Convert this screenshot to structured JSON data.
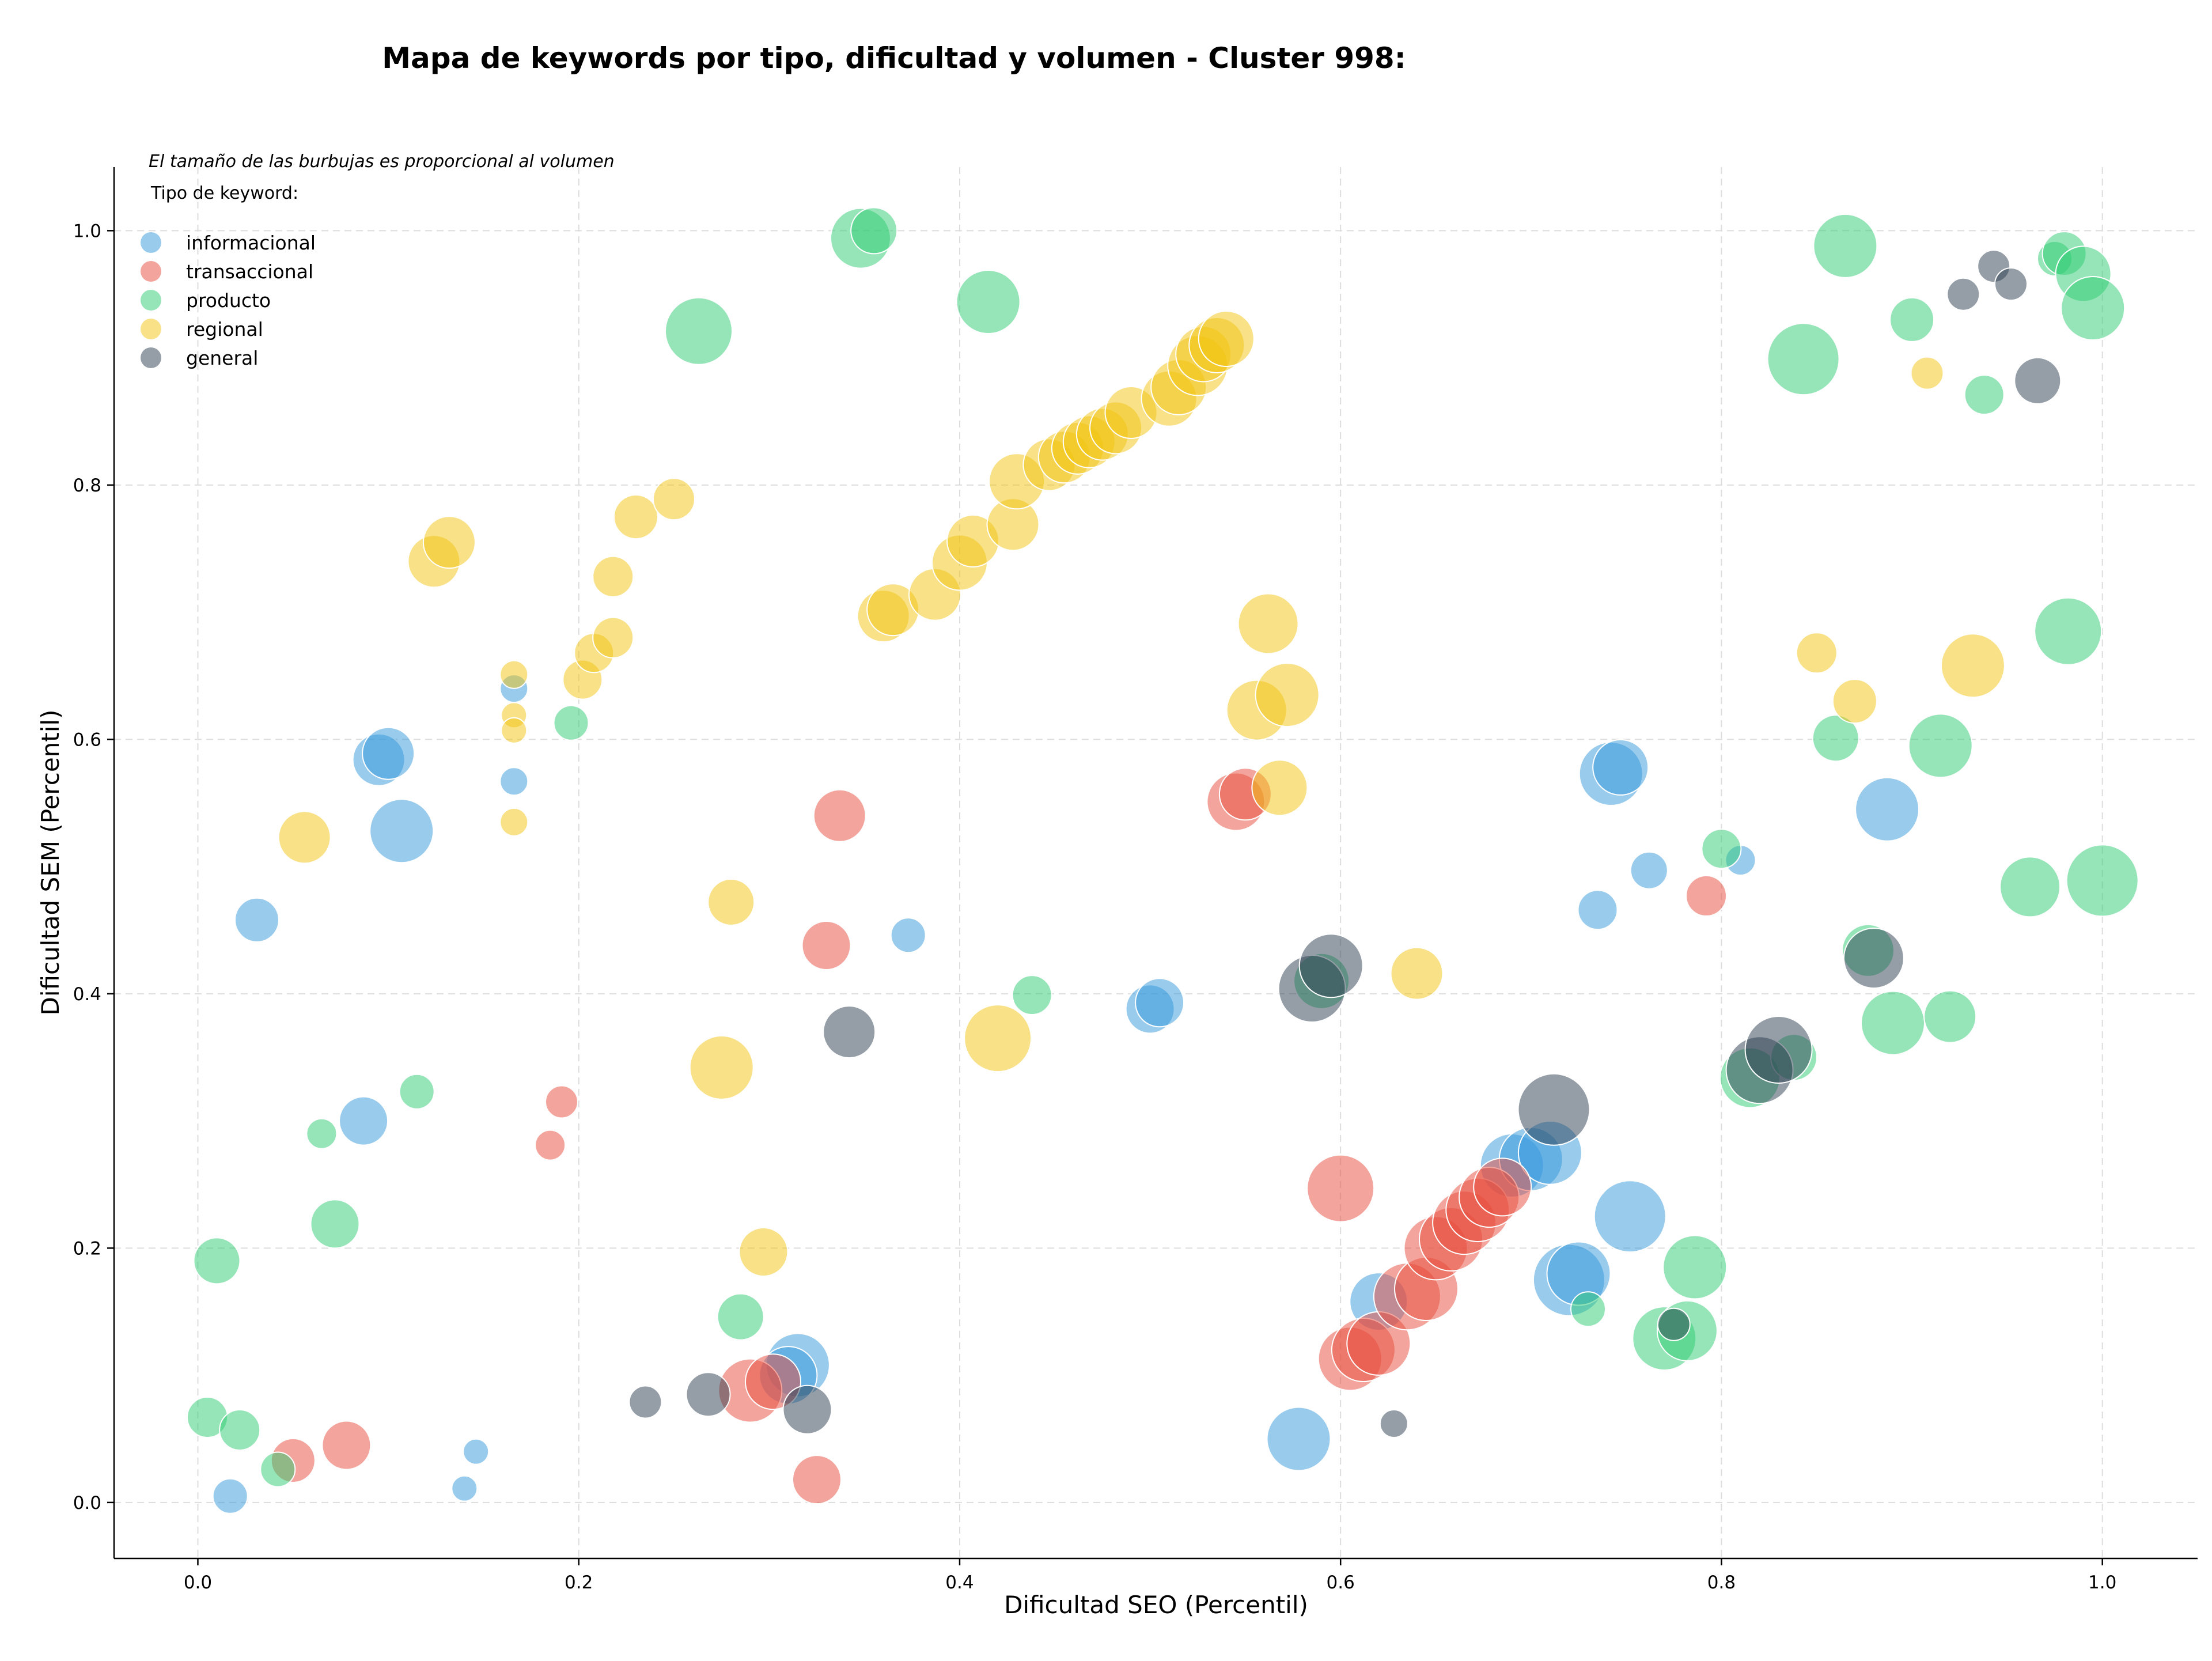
{
  "chart_data": {
    "type": "scatter",
    "title": "Mapa de keywords por tipo, dificultad y volumen - Cluster 998:",
    "xlabel": "Dificultad SEO (Percentil)",
    "ylabel": "Dificultad SEM (Percentil)",
    "xlim": [
      -0.044,
      1.05
    ],
    "ylim": [
      -0.044,
      1.05
    ],
    "xticks": [
      "0.0",
      "0.2",
      "0.4",
      "0.6",
      "0.8",
      "1.0"
    ],
    "yticks": [
      "0.0",
      "0.2",
      "0.4",
      "0.6",
      "0.8",
      "1.0"
    ],
    "grid": true,
    "legend": {
      "placement": "top-left",
      "note": "El tamaño de las burbujas es proporcional al volumen",
      "title": "Tipo de keyword:"
    },
    "series": [
      {
        "name": "informacional",
        "color": "#3498db",
        "points": [
          {
            "x": 0.017,
            "y": 0.005,
            "r": 30
          },
          {
            "x": 0.14,
            "y": 0.011,
            "r": 22
          },
          {
            "x": 0.146,
            "y": 0.04,
            "r": 22
          },
          {
            "x": 0.031,
            "y": 0.458,
            "r": 38
          },
          {
            "x": 0.087,
            "y": 0.3,
            "r": 42
          },
          {
            "x": 0.095,
            "y": 0.584,
            "r": 45
          },
          {
            "x": 0.1,
            "y": 0.589,
            "r": 45
          },
          {
            "x": 0.107,
            "y": 0.528,
            "r": 55
          },
          {
            "x": 0.166,
            "y": 0.64,
            "r": 24
          },
          {
            "x": 0.166,
            "y": 0.567,
            "r": 24
          },
          {
            "x": 0.315,
            "y": 0.108,
            "r": 55
          },
          {
            "x": 0.31,
            "y": 0.1,
            "r": 50
          },
          {
            "x": 0.373,
            "y": 0.446,
            "r": 30
          },
          {
            "x": 0.5,
            "y": 0.388,
            "r": 42
          },
          {
            "x": 0.505,
            "y": 0.393,
            "r": 42
          },
          {
            "x": 0.578,
            "y": 0.05,
            "r": 55
          },
          {
            "x": 0.62,
            "y": 0.158,
            "r": 50
          },
          {
            "x": 0.69,
            "y": 0.265,
            "r": 55
          },
          {
            "x": 0.7,
            "y": 0.27,
            "r": 55
          },
          {
            "x": 0.71,
            "y": 0.275,
            "r": 55
          },
          {
            "x": 0.72,
            "y": 0.175,
            "r": 62
          },
          {
            "x": 0.725,
            "y": 0.18,
            "r": 55
          },
          {
            "x": 0.735,
            "y": 0.466,
            "r": 34
          },
          {
            "x": 0.742,
            "y": 0.573,
            "r": 55
          },
          {
            "x": 0.747,
            "y": 0.578,
            "r": 48
          },
          {
            "x": 0.752,
            "y": 0.225,
            "r": 62
          },
          {
            "x": 0.762,
            "y": 0.497,
            "r": 32
          },
          {
            "x": 0.81,
            "y": 0.505,
            "r": 26
          },
          {
            "x": 0.887,
            "y": 0.545,
            "r": 55
          }
        ]
      },
      {
        "name": "transaccional",
        "color": "#e74c3c",
        "points": [
          {
            "x": 0.05,
            "y": 0.033,
            "r": 38
          },
          {
            "x": 0.078,
            "y": 0.045,
            "r": 42
          },
          {
            "x": 0.185,
            "y": 0.281,
            "r": 26
          },
          {
            "x": 0.191,
            "y": 0.315,
            "r": 28
          },
          {
            "x": 0.29,
            "y": 0.088,
            "r": 55
          },
          {
            "x": 0.302,
            "y": 0.095,
            "r": 48
          },
          {
            "x": 0.325,
            "y": 0.018,
            "r": 42
          },
          {
            "x": 0.33,
            "y": 0.438,
            "r": 42
          },
          {
            "x": 0.337,
            "y": 0.54,
            "r": 45
          },
          {
            "x": 0.545,
            "y": 0.551,
            "r": 50
          },
          {
            "x": 0.55,
            "y": 0.557,
            "r": 45
          },
          {
            "x": 0.6,
            "y": 0.247,
            "r": 58
          },
          {
            "x": 0.605,
            "y": 0.113,
            "r": 55
          },
          {
            "x": 0.612,
            "y": 0.12,
            "r": 55
          },
          {
            "x": 0.62,
            "y": 0.125,
            "r": 55
          },
          {
            "x": 0.635,
            "y": 0.162,
            "r": 58
          },
          {
            "x": 0.645,
            "y": 0.168,
            "r": 55
          },
          {
            "x": 0.65,
            "y": 0.2,
            "r": 55
          },
          {
            "x": 0.658,
            "y": 0.207,
            "r": 55
          },
          {
            "x": 0.665,
            "y": 0.22,
            "r": 55
          },
          {
            "x": 0.672,
            "y": 0.23,
            "r": 55
          },
          {
            "x": 0.678,
            "y": 0.24,
            "r": 52
          },
          {
            "x": 0.685,
            "y": 0.248,
            "r": 50
          },
          {
            "x": 0.792,
            "y": 0.477,
            "r": 35
          }
        ]
      },
      {
        "name": "producto",
        "color": "#2ecc71",
        "points": [
          {
            "x": 0.005,
            "y": 0.067,
            "r": 35
          },
          {
            "x": 0.01,
            "y": 0.19,
            "r": 40
          },
          {
            "x": 0.022,
            "y": 0.057,
            "r": 35
          },
          {
            "x": 0.042,
            "y": 0.026,
            "r": 30
          },
          {
            "x": 0.065,
            "y": 0.29,
            "r": 26
          },
          {
            "x": 0.072,
            "y": 0.219,
            "r": 42
          },
          {
            "x": 0.115,
            "y": 0.323,
            "r": 30
          },
          {
            "x": 0.196,
            "y": 0.613,
            "r": 30
          },
          {
            "x": 0.263,
            "y": 0.921,
            "r": 58
          },
          {
            "x": 0.285,
            "y": 0.146,
            "r": 40
          },
          {
            "x": 0.348,
            "y": 0.994,
            "r": 52
          },
          {
            "x": 0.355,
            "y": 1.0,
            "r": 40
          },
          {
            "x": 0.415,
            "y": 0.944,
            "r": 55
          },
          {
            "x": 0.438,
            "y": 0.399,
            "r": 34
          },
          {
            "x": 0.59,
            "y": 0.41,
            "r": 48
          },
          {
            "x": 0.73,
            "y": 0.152,
            "r": 30
          },
          {
            "x": 0.77,
            "y": 0.129,
            "r": 55
          },
          {
            "x": 0.782,
            "y": 0.135,
            "r": 52
          },
          {
            "x": 0.786,
            "y": 0.185,
            "r": 55
          },
          {
            "x": 0.8,
            "y": 0.514,
            "r": 34
          },
          {
            "x": 0.815,
            "y": 0.334,
            "r": 52
          },
          {
            "x": 0.838,
            "y": 0.35,
            "r": 40
          },
          {
            "x": 0.843,
            "y": 0.899,
            "r": 62
          },
          {
            "x": 0.86,
            "y": 0.601,
            "r": 40
          },
          {
            "x": 0.865,
            "y": 0.988,
            "r": 55
          },
          {
            "x": 0.877,
            "y": 0.434,
            "r": 45
          },
          {
            "x": 0.89,
            "y": 0.377,
            "r": 55
          },
          {
            "x": 0.9,
            "y": 0.93,
            "r": 38
          },
          {
            "x": 0.915,
            "y": 0.595,
            "r": 55
          },
          {
            "x": 0.92,
            "y": 0.382,
            "r": 45
          },
          {
            "x": 0.938,
            "y": 0.871,
            "r": 34
          },
          {
            "x": 0.962,
            "y": 0.484,
            "r": 52
          },
          {
            "x": 0.975,
            "y": 0.978,
            "r": 30
          },
          {
            "x": 0.98,
            "y": 0.982,
            "r": 38
          },
          {
            "x": 0.982,
            "y": 0.685,
            "r": 58
          },
          {
            "x": 0.99,
            "y": 0.966,
            "r": 48
          },
          {
            "x": 0.995,
            "y": 0.939,
            "r": 55
          },
          {
            "x": 1.0,
            "y": 0.489,
            "r": 62
          }
        ]
      },
      {
        "name": "regional",
        "color": "#f1c40f",
        "points": [
          {
            "x": 0.056,
            "y": 0.523,
            "r": 45
          },
          {
            "x": 0.124,
            "y": 0.74,
            "r": 45
          },
          {
            "x": 0.132,
            "y": 0.755,
            "r": 45
          },
          {
            "x": 0.166,
            "y": 0.651,
            "r": 24
          },
          {
            "x": 0.166,
            "y": 0.619,
            "r": 22
          },
          {
            "x": 0.166,
            "y": 0.607,
            "r": 22
          },
          {
            "x": 0.166,
            "y": 0.535,
            "r": 24
          },
          {
            "x": 0.202,
            "y": 0.647,
            "r": 34
          },
          {
            "x": 0.208,
            "y": 0.668,
            "r": 34
          },
          {
            "x": 0.218,
            "y": 0.728,
            "r": 35
          },
          {
            "x": 0.218,
            "y": 0.68,
            "r": 35
          },
          {
            "x": 0.23,
            "y": 0.775,
            "r": 38
          },
          {
            "x": 0.25,
            "y": 0.789,
            "r": 36
          },
          {
            "x": 0.275,
            "y": 0.342,
            "r": 55
          },
          {
            "x": 0.28,
            "y": 0.472,
            "r": 40
          },
          {
            "x": 0.297,
            "y": 0.197,
            "r": 42
          },
          {
            "x": 0.36,
            "y": 0.697,
            "r": 45
          },
          {
            "x": 0.365,
            "y": 0.702,
            "r": 45
          },
          {
            "x": 0.387,
            "y": 0.714,
            "r": 45
          },
          {
            "x": 0.4,
            "y": 0.739,
            "r": 48
          },
          {
            "x": 0.407,
            "y": 0.756,
            "r": 45
          },
          {
            "x": 0.42,
            "y": 0.365,
            "r": 58
          },
          {
            "x": 0.428,
            "y": 0.769,
            "r": 45
          },
          {
            "x": 0.43,
            "y": 0.803,
            "r": 48
          },
          {
            "x": 0.447,
            "y": 0.816,
            "r": 45
          },
          {
            "x": 0.455,
            "y": 0.822,
            "r": 45
          },
          {
            "x": 0.462,
            "y": 0.829,
            "r": 45
          },
          {
            "x": 0.468,
            "y": 0.834,
            "r": 45
          },
          {
            "x": 0.475,
            "y": 0.84,
            "r": 45
          },
          {
            "x": 0.482,
            "y": 0.845,
            "r": 45
          },
          {
            "x": 0.49,
            "y": 0.857,
            "r": 45
          },
          {
            "x": 0.51,
            "y": 0.868,
            "r": 48
          },
          {
            "x": 0.515,
            "y": 0.877,
            "r": 48
          },
          {
            "x": 0.525,
            "y": 0.894,
            "r": 52
          },
          {
            "x": 0.528,
            "y": 0.903,
            "r": 48
          },
          {
            "x": 0.535,
            "y": 0.91,
            "r": 48
          },
          {
            "x": 0.54,
            "y": 0.915,
            "r": 48
          },
          {
            "x": 0.556,
            "y": 0.623,
            "r": 52
          },
          {
            "x": 0.562,
            "y": 0.691,
            "r": 52
          },
          {
            "x": 0.568,
            "y": 0.562,
            "r": 48
          },
          {
            "x": 0.572,
            "y": 0.635,
            "r": 55
          },
          {
            "x": 0.64,
            "y": 0.416,
            "r": 45
          },
          {
            "x": 0.85,
            "y": 0.668,
            "r": 35
          },
          {
            "x": 0.87,
            "y": 0.63,
            "r": 38
          },
          {
            "x": 0.908,
            "y": 0.888,
            "r": 28
          },
          {
            "x": 0.932,
            "y": 0.658,
            "r": 55
          }
        ]
      },
      {
        "name": "general",
        "color": "#2c3e50",
        "points": [
          {
            "x": 0.235,
            "y": 0.079,
            "r": 28
          },
          {
            "x": 0.268,
            "y": 0.085,
            "r": 38
          },
          {
            "x": 0.32,
            "y": 0.073,
            "r": 42
          },
          {
            "x": 0.342,
            "y": 0.37,
            "r": 45
          },
          {
            "x": 0.585,
            "y": 0.404,
            "r": 58
          },
          {
            "x": 0.595,
            "y": 0.422,
            "r": 55
          },
          {
            "x": 0.628,
            "y": 0.062,
            "r": 24
          },
          {
            "x": 0.712,
            "y": 0.309,
            "r": 62
          },
          {
            "x": 0.775,
            "y": 0.14,
            "r": 28
          },
          {
            "x": 0.82,
            "y": 0.34,
            "r": 58
          },
          {
            "x": 0.83,
            "y": 0.356,
            "r": 58
          },
          {
            "x": 0.88,
            "y": 0.428,
            "r": 52
          },
          {
            "x": 0.927,
            "y": 0.95,
            "r": 28
          },
          {
            "x": 0.943,
            "y": 0.972,
            "r": 28
          },
          {
            "x": 0.952,
            "y": 0.958,
            "r": 28
          },
          {
            "x": 0.966,
            "y": 0.882,
            "r": 40
          }
        ]
      }
    ]
  }
}
